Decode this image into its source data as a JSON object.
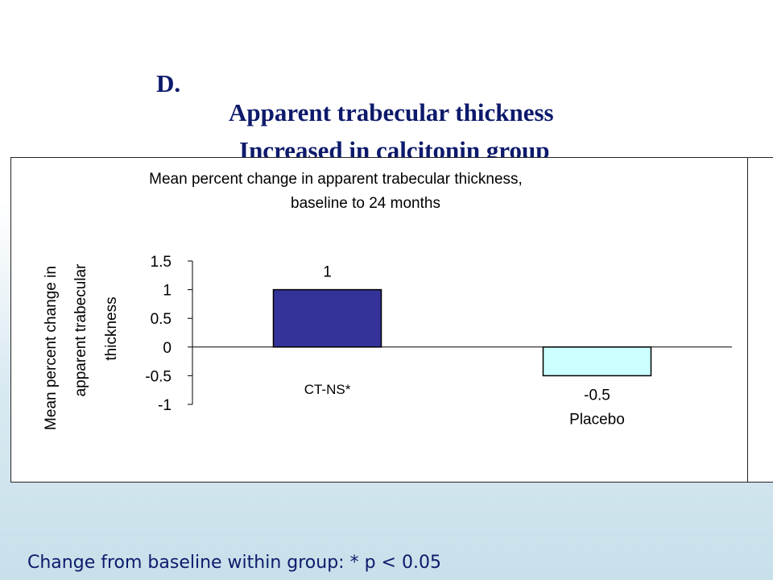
{
  "slide": {
    "title_label": "D.",
    "title_text": "Apparent trabecular thickness",
    "subtitle": "Increased in calcitonin group",
    "footnote": "Change from baseline within group: * p < 0.05"
  },
  "colors": {
    "title": "#0d1a6b",
    "bar_ct": "#333399",
    "bar_placebo": "#ccffff"
  },
  "chart_data": {
    "type": "bar",
    "title": "Mean percent change in apparent trabecular thickness,",
    "subtitle": "baseline to 24 months",
    "ylabel": [
      "Mean percent change in",
      "apparent trabecular",
      "thickness"
    ],
    "xlabel": "",
    "ylim": [
      -1,
      1.5
    ],
    "yticks": [
      "1.5",
      "1",
      "0.5",
      "0",
      "-0.5",
      "-1"
    ],
    "categories": [
      "CT-NS*",
      "Placebo"
    ],
    "values": [
      1,
      -0.5
    ],
    "data_labels": [
      "1",
      "-0.5"
    ],
    "grid": false,
    "legend": "none"
  }
}
